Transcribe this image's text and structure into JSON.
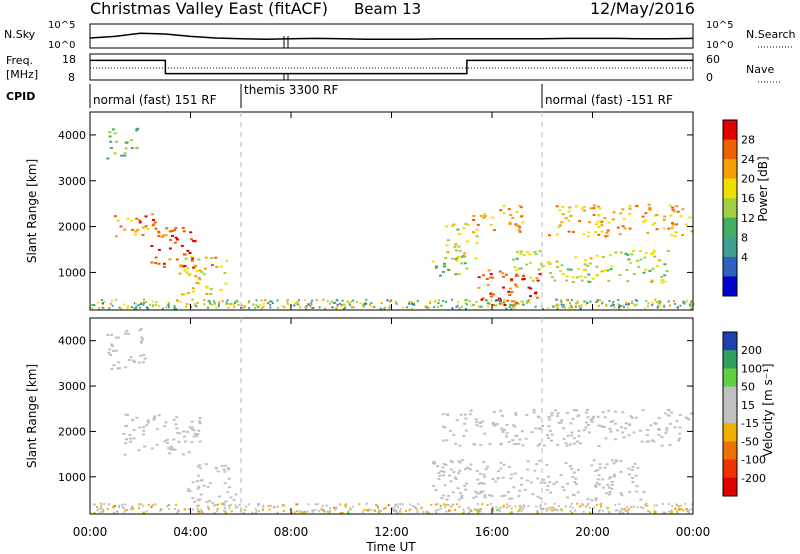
{
  "header": {
    "title": "Christmas Valley East (fitACF)",
    "beam": "Beam 13",
    "date": "12/May/2016"
  },
  "noise_panel": {
    "left_label": "N.Sky",
    "right_label": "N.Search",
    "ytick_top": "10^5",
    "ytick_bottom": "10^0",
    "right_ytick_top": "10^5",
    "right_ytick_bottom": "10^0"
  },
  "freq_panel": {
    "left_label_line1": "Freq.",
    "left_label_line2": "[MHz]",
    "right_label": "Nave",
    "left_ticks": [
      "18",
      "8"
    ],
    "right_ticks": [
      "60",
      "0"
    ]
  },
  "cpid_panel": {
    "label": "CPID",
    "segments": [
      {
        "text": "normal (fast) 151 RF",
        "start_hour": 0
      },
      {
        "text": "themis 3300 RF",
        "start_hour": 6
      },
      {
        "text": "normal (fast) -151 RF",
        "start_hour": 18
      }
    ]
  },
  "power_panel": {
    "ylabel": "Slant Range [km]",
    "colorbar_label": "Power [dB]",
    "colorbar_ticks": [
      "28",
      "24",
      "20",
      "16",
      "12",
      "8",
      "4"
    ],
    "colorbar_colors": [
      "#e00000",
      "#f06000",
      "#f5a000",
      "#f0e000",
      "#a0d040",
      "#40b060",
      "#40a090",
      "#3060c0",
      "#0000d0"
    ]
  },
  "velocity_panel": {
    "ylabel": "Slant Range [km]",
    "colorbar_label": "Velocity [m s⁻¹]",
    "colorbar_ticks": [
      "200",
      "100",
      "50",
      "15",
      "-15",
      "-50",
      "-100",
      "-200"
    ],
    "colorbar_colors": [
      "#2040b0",
      "#30a060",
      "#60d040",
      "#c0c0c0",
      "#c0c0c0",
      "#f0b000",
      "#f07000",
      "#f03000",
      "#e00000"
    ]
  },
  "xaxis": {
    "label": "Time UT",
    "ticks": [
      "00:00",
      "04:00",
      "08:00",
      "12:00",
      "16:00",
      "20:00",
      "00:00"
    ]
  },
  "chart_data": [
    {
      "type": "line",
      "name": "noise",
      "x": [
        0,
        1,
        2,
        3,
        4,
        5,
        6,
        7,
        8,
        9,
        10,
        11,
        12,
        13,
        14,
        15,
        16,
        17,
        18,
        19,
        20,
        21,
        22,
        23,
        24
      ],
      "series": [
        {
          "name": "N.Sky",
          "values": [
            2.0,
            2.4,
            3.2,
            3.0,
            2.4,
            2.0,
            1.8,
            1.7,
            1.8,
            1.9,
            1.8,
            1.7,
            1.7,
            1.7,
            1.8,
            1.8,
            1.8,
            1.8,
            1.8,
            1.9,
            1.9,
            1.9,
            1.8,
            1.8,
            1.9
          ]
        }
      ],
      "ylim": [
        0,
        5
      ]
    },
    {
      "type": "line",
      "name": "frequency",
      "x": [
        0,
        3,
        3,
        15,
        15,
        24
      ],
      "series": [
        {
          "name": "Freq.",
          "values": [
            16,
            16,
            10,
            10,
            16,
            16
          ]
        }
      ],
      "ylim": [
        8,
        18
      ]
    },
    {
      "type": "heatmap",
      "name": "power",
      "x_hours": [
        0,
        24
      ],
      "ylim": [
        180,
        4500
      ],
      "zlim": [
        0,
        30
      ],
      "blobs": [
        {
          "t0": 0.6,
          "t1": 1.9,
          "r0": 3500,
          "r1": 4200,
          "value": 12
        },
        {
          "t0": 0.9,
          "t1": 2.9,
          "r0": 1800,
          "r1": 2300,
          "value": 24
        },
        {
          "t0": 2.4,
          "t1": 4.2,
          "r0": 1100,
          "r1": 2100,
          "value": 28
        },
        {
          "t0": 3.5,
          "t1": 5.4,
          "r0": 500,
          "r1": 1400,
          "value": 20
        },
        {
          "t0": 14.0,
          "t1": 15.4,
          "r0": 1300,
          "r1": 2100,
          "value": 18
        },
        {
          "t0": 13.6,
          "t1": 15.0,
          "r0": 900,
          "r1": 1400,
          "value": 14
        },
        {
          "t0": 15.2,
          "t1": 17.2,
          "r0": 1900,
          "r1": 2500,
          "value": 22
        },
        {
          "t0": 15.4,
          "t1": 18.0,
          "r0": 300,
          "r1": 1100,
          "value": 28
        },
        {
          "t0": 16.8,
          "t1": 23.0,
          "r0": 800,
          "r1": 1500,
          "value": 16
        },
        {
          "t0": 18.2,
          "t1": 24.0,
          "r0": 1800,
          "r1": 2500,
          "value": 22
        }
      ]
    },
    {
      "type": "heatmap",
      "name": "velocity",
      "x_hours": [
        0,
        24
      ],
      "ylim": [
        180,
        4500
      ],
      "zlim": [
        -250,
        250
      ],
      "blobs": [
        {
          "t0": 0.6,
          "t1": 2.2,
          "r0": 3400,
          "r1": 4300,
          "value": 0
        },
        {
          "t0": 1.2,
          "t1": 4.4,
          "r0": 1500,
          "r1": 2400,
          "value": 0
        },
        {
          "t0": 3.8,
          "t1": 5.8,
          "r0": 400,
          "r1": 1300,
          "value": 60
        },
        {
          "t0": 14.0,
          "t1": 24.0,
          "r0": 1700,
          "r1": 2500,
          "value": 0
        },
        {
          "t0": 13.6,
          "t1": 22.0,
          "r0": 500,
          "r1": 1400,
          "value": 0
        }
      ]
    }
  ]
}
